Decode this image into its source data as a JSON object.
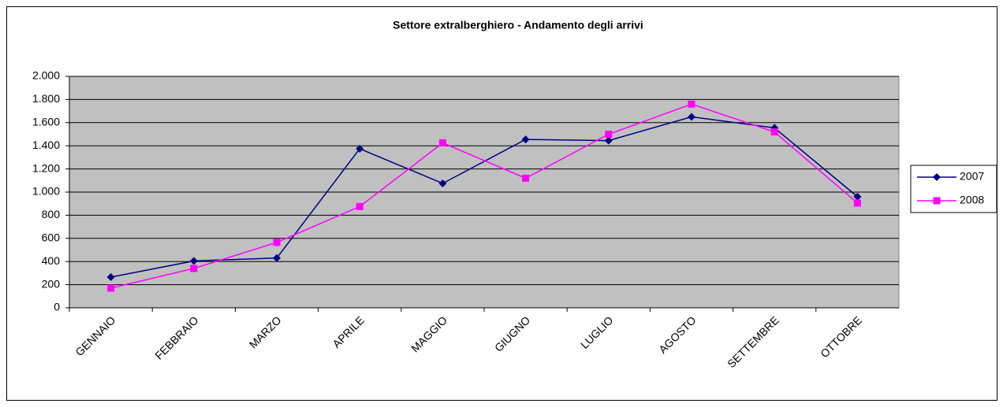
{
  "chart_data": {
    "type": "line",
    "title": "Settore extralberghiero - Andamento degli arrivi",
    "categories": [
      "GENNAIO",
      "FEBBRAIO",
      "MARZO",
      "APRILE",
      "MAGGIO",
      "GIUGNO",
      "LUGLIO",
      "AGOSTO",
      "SETTEMBRE",
      "OTTOBRE"
    ],
    "series": [
      {
        "name": "2007",
        "color": "#000080",
        "marker": "diamond",
        "values": [
          265,
          405,
          430,
          1375,
          1075,
          1455,
          1445,
          1650,
          1555,
          960
        ]
      },
      {
        "name": "2008",
        "color": "#ff00ff",
        "marker": "square",
        "values": [
          170,
          340,
          565,
          875,
          1425,
          1120,
          1500,
          1760,
          1520,
          905
        ]
      }
    ],
    "ylim": [
      0,
      2000
    ],
    "yticks": [
      0,
      200,
      400,
      600,
      800,
      {
        "value": 1000,
        "label": "1.000"
      },
      {
        "value": 1200,
        "label": "1.200"
      },
      {
        "value": 1400,
        "label": "1.400"
      },
      {
        "value": 1600,
        "label": "1.600"
      },
      {
        "value": 1800,
        "label": "1.800"
      },
      {
        "value": 2000,
        "label": "2.000"
      }
    ],
    "grid": true,
    "legend": "right",
    "plot_background": "#c0c0c0"
  }
}
